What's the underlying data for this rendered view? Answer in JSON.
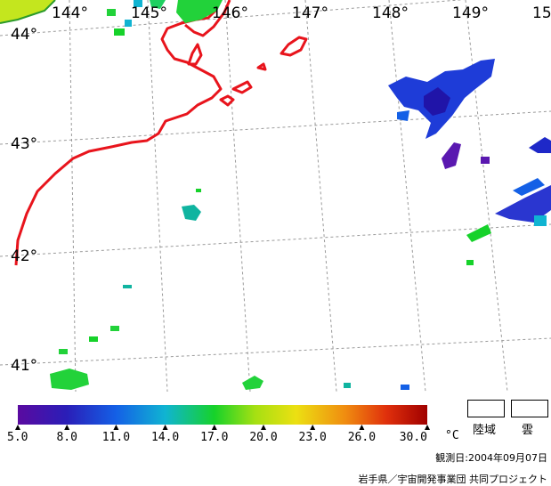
{
  "map": {
    "lon_labels": [
      "144°",
      "145°",
      "146°",
      "147°",
      "148°",
      "149°",
      "15"
    ],
    "lat_labels": [
      "44°",
      "43°",
      "42°",
      "41°"
    ],
    "coastline_color": "#e8141c",
    "grid_color": "#9a9a9a"
  },
  "legend": {
    "unit": "°C",
    "ticks": [
      "5.0",
      "8.0",
      "11.0",
      "14.0",
      "17.0",
      "20.0",
      "23.0",
      "26.0",
      "30.0"
    ],
    "min": 5.0,
    "max": 30.0,
    "colors": [
      "#5a0aa0",
      "#2a1eb8",
      "#1460e6",
      "#10b4d2",
      "#16d22a",
      "#a6e012",
      "#ece012",
      "#f08c10",
      "#e0300c",
      "#a00000"
    ],
    "land_label": "陸域",
    "cloud_label": "雲"
  },
  "footer": {
    "observation_date": "観測日:2004年09月07日",
    "credit": "岩手県／宇宙開発事業団 共同プロジェクト"
  }
}
